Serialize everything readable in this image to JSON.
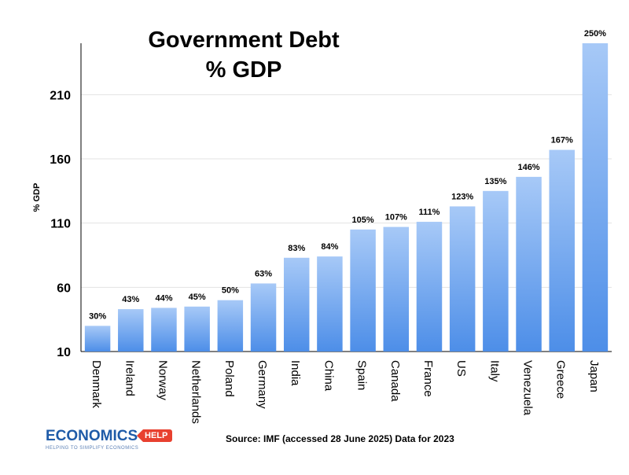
{
  "chart_data": {
    "type": "bar",
    "title_line1": "Government Debt",
    "title_line2": "% GDP",
    "ylabel": "% GDP",
    "xlabel": "",
    "ylim": [
      10,
      250
    ],
    "yticks": [
      10,
      60,
      110,
      160,
      210
    ],
    "grid": "horizontal",
    "categories": [
      "Denmark",
      "Ireland",
      "Norway",
      "Netherlands",
      "Poland",
      "Germany",
      "India",
      "China",
      "Spain",
      "Canada",
      "France",
      "US",
      "Italy",
      "Venezuela",
      "Greece",
      "Japan"
    ],
    "values": [
      30,
      43,
      44,
      45,
      50,
      63,
      83,
      84,
      105,
      107,
      111,
      123,
      135,
      146,
      167,
      250
    ],
    "value_labels": [
      "30%",
      "43%",
      "44%",
      "45%",
      "50%",
      "63%",
      "83%",
      "84%",
      "105%",
      "107%",
      "111%",
      "123%",
      "135%",
      "146%",
      "167%",
      "250%"
    ],
    "bar_color_top": "#a7c9f7",
    "bar_color_bottom": "#4d8ee8"
  },
  "source_text": "Source: IMF (accessed 28 June 2025) Data for 2023",
  "logo": {
    "main": "ECONOMICS",
    "tag": "HELP",
    "sub": "HELPING TO SIMPLIFY ECONOMICS"
  }
}
